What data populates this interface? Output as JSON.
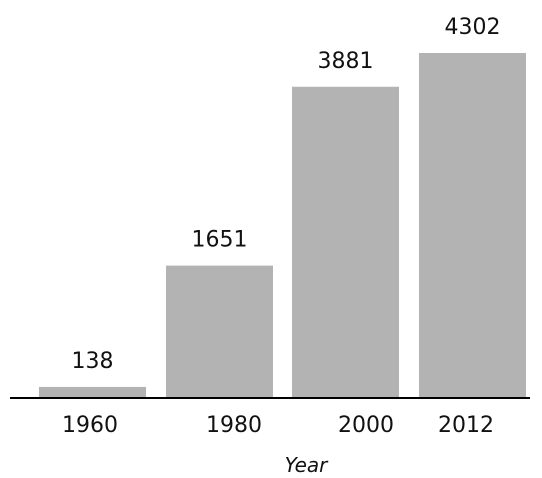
{
  "chart_data": {
    "type": "bar",
    "categories": [
      "1960",
      "1980",
      "2000",
      "2012"
    ],
    "values": [
      138,
      1651,
      3881,
      4302
    ],
    "data_labels": [
      "138",
      "1651",
      "3881",
      "4302"
    ],
    "title": "",
    "xlabel": "Year",
    "ylabel": "",
    "ylim": [
      0,
      4302
    ],
    "grid": false,
    "legend": "none",
    "colors": {
      "bar": "#b3b3b3",
      "axis": "#000000",
      "text": "#111111"
    }
  }
}
